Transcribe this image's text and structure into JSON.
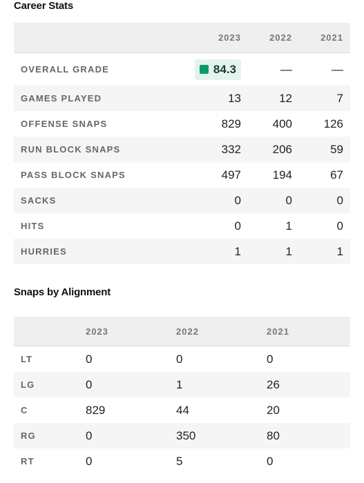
{
  "career": {
    "title": "Career Stats",
    "years": [
      "2023",
      "2022",
      "2021"
    ],
    "grade": {
      "label": "OVERALL GRADE",
      "values": [
        "84.3",
        "—",
        "—"
      ],
      "badge_color": "#0d9a6a"
    },
    "rows": [
      {
        "label": "GAMES PLAYED",
        "values": [
          "13",
          "12",
          "7"
        ]
      },
      {
        "label": "OFFENSE SNAPS",
        "values": [
          "829",
          "400",
          "126"
        ]
      },
      {
        "label": "RUN BLOCK SNAPS",
        "values": [
          "332",
          "206",
          "59"
        ]
      },
      {
        "label": "PASS BLOCK SNAPS",
        "values": [
          "497",
          "194",
          "67"
        ]
      },
      {
        "label": "SACKS",
        "values": [
          "0",
          "0",
          "0"
        ]
      },
      {
        "label": "HITS",
        "values": [
          "0",
          "1",
          "0"
        ]
      },
      {
        "label": "HURRIES",
        "values": [
          "1",
          "1",
          "1"
        ]
      }
    ]
  },
  "alignment": {
    "title": "Snaps by Alignment",
    "years": [
      "2023",
      "2022",
      "2021"
    ],
    "rows": [
      {
        "label": "LT",
        "values": [
          "0",
          "0",
          "0"
        ]
      },
      {
        "label": "LG",
        "values": [
          "0",
          "1",
          "26"
        ]
      },
      {
        "label": "C",
        "values": [
          "829",
          "44",
          "20"
        ]
      },
      {
        "label": "RG",
        "values": [
          "0",
          "350",
          "80"
        ]
      },
      {
        "label": "RT",
        "values": [
          "0",
          "5",
          "0"
        ]
      }
    ]
  }
}
